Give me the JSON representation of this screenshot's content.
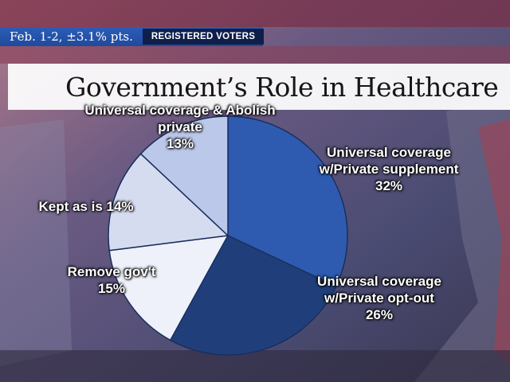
{
  "header": {
    "poll_info": "Feb. 1-2, ±3.1% pts.",
    "badge": "REGISTERED VOTERS"
  },
  "colors": {
    "top_bar": "#2458b0",
    "badge_bg": "#0f1f4a",
    "slice_dark": "#203f7a",
    "slice_mid": "#2e5bb0",
    "slice_light": "#eef1fa",
    "slice_lavender": "#d6dcf0",
    "slice_pale_blue": "#bcc8ea"
  },
  "chart_data": {
    "type": "pie",
    "title": "Government’s Role in Healthcare",
    "slices": [
      {
        "label_lines": [
          "Universal coverage",
          "w/Private supplement",
          "32%"
        ],
        "value": 32,
        "color": "#2e5bb0"
      },
      {
        "label_lines": [
          "Universal coverage",
          "w/Private opt-out",
          "26%"
        ],
        "value": 26,
        "color": "#203f7a"
      },
      {
        "label_lines": [
          "Remove gov't",
          "15%"
        ],
        "value": 15,
        "color": "#eef1fa"
      },
      {
        "label_lines": [
          "Kept as is 14%"
        ],
        "value": 14,
        "color": "#d6dcf0"
      },
      {
        "label_lines": [
          "Universal coverage & Abolish",
          "private",
          "13%"
        ],
        "value": 13,
        "color": "#bcc8ea"
      }
    ]
  }
}
